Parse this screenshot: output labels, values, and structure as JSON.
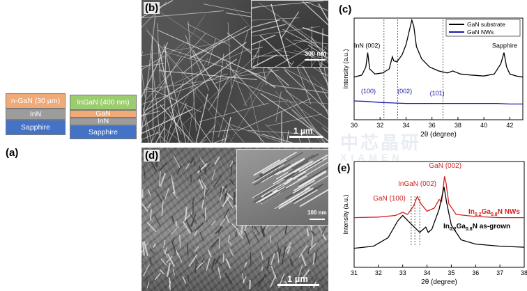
{
  "panels": {
    "a": {
      "label": "(a)",
      "stack1": [
        "n-GaN (30 µm)",
        "InN",
        "Sapphire"
      ],
      "stack2": [
        "InGaN (400 nm)",
        "GaN",
        "InN",
        "Sapphire"
      ]
    },
    "b": {
      "label": "(b)",
      "scale_main": "1 µm",
      "scale_inset": "300 nm"
    },
    "c": {
      "label": "(c)"
    },
    "d": {
      "label": "(d)",
      "scale_main": "1 µm",
      "scale_inset": "100 nm"
    },
    "e": {
      "label": "(e)"
    }
  },
  "watermark": {
    "line1": "中芯晶研",
    "line2": "XIAMEN"
  },
  "chart_data": [
    {
      "type": "line",
      "panel": "c",
      "xlabel": "2θ (degree)",
      "ylabel": "Intensity (a.u.)",
      "xlim": [
        30,
        43
      ],
      "xticks": [
        30,
        32,
        34,
        36,
        38,
        40,
        42
      ],
      "legend": {
        "placement": "top-right",
        "entries": [
          "GaN substrate",
          "GaN NWs"
        ]
      },
      "series": [
        {
          "name": "GaN substrate",
          "color": "#000000",
          "x": [
            30.0,
            30.6,
            30.9,
            31.05,
            31.2,
            31.6,
            32.2,
            32.7,
            32.95,
            33.05,
            33.3,
            33.7,
            34.0,
            34.3,
            34.45,
            34.6,
            34.8,
            35.2,
            35.8,
            36.5,
            37.2,
            37.6,
            38.2,
            39.0,
            40.0,
            40.8,
            41.3,
            41.55,
            41.75,
            42.0,
            42.5,
            43.0
          ],
          "y": [
            0.42,
            0.44,
            0.52,
            0.66,
            0.5,
            0.45,
            0.46,
            0.5,
            0.62,
            0.58,
            0.57,
            0.64,
            0.74,
            0.9,
            0.98,
            0.92,
            0.72,
            0.6,
            0.52,
            0.48,
            0.46,
            0.48,
            0.45,
            0.44,
            0.43,
            0.45,
            0.55,
            0.66,
            0.52,
            0.45,
            0.43,
            0.42
          ]
        },
        {
          "name": "GaN NWs",
          "color": "#1a1aa8",
          "x": [
            30.0,
            31.0,
            32.0,
            33.0,
            34.0,
            35.0,
            36.0,
            37.0,
            38.0,
            39.0,
            40.0,
            41.0,
            42.0,
            43.0
          ],
          "y": [
            0.185,
            0.18,
            0.17,
            0.165,
            0.16,
            0.16,
            0.16,
            0.16,
            0.16,
            0.16,
            0.16,
            0.16,
            0.155,
            0.155
          ]
        }
      ],
      "annotations": [
        {
          "text": "InN (002)",
          "x": 31.0,
          "y": 0.71,
          "color": "#000000"
        },
        {
          "text": "Sapphire",
          "x": 41.6,
          "y": 0.71,
          "color": "#000000"
        },
        {
          "text": "(100)",
          "x": 31.1,
          "y": 0.26,
          "color": "#1a1aa8"
        },
        {
          "text": "(002)",
          "x": 33.9,
          "y": 0.26,
          "color": "#1a1aa8"
        },
        {
          "text": "(101)",
          "x": 36.4,
          "y": 0.24,
          "color": "#1a1aa8"
        }
      ],
      "vlines": [
        32.3,
        33.35,
        36.85
      ]
    },
    {
      "type": "line",
      "panel": "e",
      "xlabel": "2θ (degree)",
      "ylabel": "Intensity (a.u.)",
      "xlim": [
        31,
        38
      ],
      "xticks": [
        31,
        32,
        33,
        34,
        35,
        36,
        37,
        38
      ],
      "series": [
        {
          "name": "In0.2Ga0.8N NWs",
          "color": "#d42020",
          "x": [
            31.0,
            32.0,
            32.7,
            33.0,
            33.2,
            33.45,
            33.6,
            33.75,
            34.0,
            34.3,
            34.5,
            34.6,
            34.72,
            34.78,
            34.9,
            35.2,
            36.0,
            37.0,
            38.0
          ],
          "y": [
            0.47,
            0.475,
            0.49,
            0.52,
            0.5,
            0.58,
            0.67,
            0.6,
            0.53,
            0.56,
            0.64,
            0.62,
            0.86,
            0.8,
            0.6,
            0.5,
            0.48,
            0.47,
            0.47
          ]
        },
        {
          "name": "In0.2Ga0.8N as-grown",
          "color": "#000000",
          "x": [
            31.0,
            31.8,
            32.4,
            32.8,
            33.0,
            33.3,
            33.7,
            33.95,
            34.05,
            34.2,
            34.5,
            34.7,
            34.8,
            35.0,
            35.4,
            36.0,
            37.0,
            38.0
          ],
          "y": [
            0.18,
            0.2,
            0.28,
            0.44,
            0.49,
            0.42,
            0.33,
            0.38,
            0.33,
            0.36,
            0.55,
            0.76,
            0.62,
            0.4,
            0.26,
            0.22,
            0.2,
            0.19
          ]
        }
      ],
      "annotations": [
        {
          "text": "GaN (002)",
          "x": 34.75,
          "y": 0.94,
          "color": "#d42020"
        },
        {
          "text": "InGaN (002)",
          "x": 33.6,
          "y": 0.77,
          "color": "#d42020"
        },
        {
          "text": "GaN (100)",
          "x": 32.45,
          "y": 0.63,
          "color": "#d42020"
        }
      ],
      "series_labels": [
        {
          "prefix": "In",
          "sub1": "0.2",
          "mid": "Ga",
          "sub2": "0.8",
          "suffix": "N NWs",
          "color": "#d42020"
        },
        {
          "prefix": "In",
          "sub1": "0.2",
          "mid": "Ga",
          "sub2": "0.8",
          "suffix": "N as-grown",
          "color": "#000000"
        }
      ],
      "vlines": [
        33.35,
        33.5,
        33.7
      ]
    }
  ]
}
